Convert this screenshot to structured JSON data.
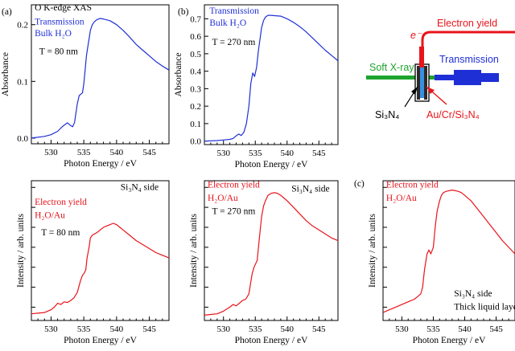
{
  "chart_data": [
    {
      "id": "a-top",
      "type": "line",
      "panel_label": "(a)",
      "xlabel": "Photon Energy / eV",
      "ylabel": "Absorbance",
      "xlim": [
        527,
        548
      ],
      "ylim": [
        -0.01,
        0.235
      ],
      "x_ticks": [
        530,
        535,
        540,
        545
      ],
      "y_ticks": [
        0.0,
        0.1,
        0.2
      ],
      "y_tick_labels": [
        "0.0",
        "0.1",
        "0.2"
      ],
      "series_color": "#1f2fd6",
      "annotations": [
        {
          "text": "O K-edge XAS",
          "color": "#000000",
          "x": 527.5,
          "y": 0.225
        },
        {
          "text": "Transmission",
          "color": "#1f2fd6",
          "x": 527.5,
          "y": 0.2
        },
        {
          "text": "Bulk H₂O",
          "color": "#1f2fd6",
          "x": 527.5,
          "y": 0.18
        },
        {
          "text": "T = 80 nm",
          "color": "#000000",
          "x": 528.2,
          "y": 0.148
        }
      ],
      "x": [
        527.0,
        529.0,
        530.0,
        531.0,
        531.8,
        532.5,
        533.0,
        533.3,
        533.6,
        534.0,
        534.3,
        534.6,
        534.8,
        535.0,
        535.2,
        535.4,
        535.6,
        535.8,
        536.0,
        536.3,
        536.6,
        537.0,
        537.5,
        538.0,
        539.0,
        540.0,
        541.0,
        542.0,
        543.0,
        544.0,
        545.0,
        546.0,
        547.0,
        548.0
      ],
      "y": [
        0.0,
        0.003,
        0.006,
        0.012,
        0.021,
        0.027,
        0.022,
        0.02,
        0.028,
        0.06,
        0.075,
        0.078,
        0.08,
        0.095,
        0.12,
        0.145,
        0.16,
        0.175,
        0.19,
        0.2,
        0.205,
        0.209,
        0.211,
        0.21,
        0.207,
        0.2,
        0.19,
        0.178,
        0.165,
        0.155,
        0.145,
        0.135,
        0.127,
        0.12
      ]
    },
    {
      "id": "b-top",
      "type": "line",
      "panel_label": "(b)",
      "xlabel": "Photon Energy / eV",
      "ylabel": "Absorbance",
      "xlim": [
        527,
        548
      ],
      "ylim": [
        -0.02,
        0.78
      ],
      "x_ticks": [
        530,
        535,
        540,
        545
      ],
      "y_ticks": [
        0.0,
        0.1,
        0.2,
        0.3,
        0.4,
        0.5,
        0.6,
        0.7
      ],
      "y_tick_labels": [
        "0.0",
        "0.1",
        "0.2",
        "0.3",
        "0.4",
        "0.5",
        "0.6",
        "0.7"
      ],
      "series_color": "#1f2fd6",
      "annotations": [
        {
          "text": "Transmission",
          "color": "#1f2fd6",
          "x": 527.8,
          "y": 0.73
        },
        {
          "text": "Bulk H₂O",
          "color": "#1f2fd6",
          "x": 527.8,
          "y": 0.66
        },
        {
          "text": "T = 270 nm",
          "color": "#000000",
          "x": 528.2,
          "y": 0.55
        }
      ],
      "x": [
        527.0,
        529.0,
        530.0,
        531.0,
        531.5,
        532.0,
        532.4,
        532.8,
        533.2,
        533.6,
        534.0,
        534.3,
        534.6,
        534.9,
        535.2,
        535.5,
        535.8,
        536.0,
        536.3,
        536.6,
        537.0,
        537.5,
        538.0,
        539.0,
        540.0,
        541.0,
        542.0,
        543.0,
        544.0,
        545.0,
        546.0,
        547.0,
        548.0
      ],
      "y": [
        0.0,
        0.003,
        0.006,
        0.01,
        0.015,
        0.03,
        0.04,
        0.032,
        0.05,
        0.1,
        0.2,
        0.33,
        0.39,
        0.37,
        0.42,
        0.52,
        0.6,
        0.65,
        0.69,
        0.71,
        0.72,
        0.72,
        0.718,
        0.715,
        0.7,
        0.68,
        0.655,
        0.625,
        0.59,
        0.555,
        0.52,
        0.49,
        0.46
      ]
    },
    {
      "id": "a-bottom",
      "type": "line",
      "xlabel": "Photon Energy / eV",
      "ylabel": "Intensity / arb. units",
      "xlim": [
        527,
        548
      ],
      "ylim": [
        0,
        1.05
      ],
      "x_ticks": [
        530,
        535,
        540,
        545
      ],
      "y_ticks": [
        0.1,
        0.25,
        0.4,
        0.55,
        0.7,
        0.85,
        1.0
      ],
      "series_color": "#e8141b",
      "annotations": [
        {
          "text": "Si₃N₄ side",
          "color": "#000000",
          "x": 540.6,
          "y": 0.98
        },
        {
          "text": "Electron yield",
          "color": "#e8141b",
          "x": 527.5,
          "y": 0.87
        },
        {
          "text": "H₂O/Au",
          "color": "#e8141b",
          "x": 527.5,
          "y": 0.77
        },
        {
          "text": "T = 80 nm",
          "color": "#000000",
          "x": 528.5,
          "y": 0.64
        }
      ],
      "x": [
        527.0,
        528.0,
        529.0,
        530.0,
        530.5,
        531.0,
        531.5,
        532.0,
        532.5,
        533.0,
        533.5,
        534.0,
        534.5,
        534.8,
        535.0,
        535.3,
        535.5,
        535.8,
        536.0,
        536.3,
        536.6,
        537.0,
        537.5,
        538.0,
        538.5,
        539.0,
        539.5,
        540.0,
        540.5,
        541.0,
        542.0,
        543.0,
        544.0,
        545.0,
        546.0,
        547.0,
        548.0
      ],
      "y": [
        0.05,
        0.055,
        0.06,
        0.08,
        0.1,
        0.13,
        0.12,
        0.14,
        0.135,
        0.15,
        0.17,
        0.21,
        0.3,
        0.34,
        0.35,
        0.38,
        0.47,
        0.55,
        0.62,
        0.64,
        0.65,
        0.66,
        0.68,
        0.7,
        0.71,
        0.72,
        0.73,
        0.72,
        0.7,
        0.68,
        0.64,
        0.6,
        0.57,
        0.54,
        0.51,
        0.49,
        0.47
      ]
    },
    {
      "id": "b-bottom",
      "type": "line",
      "xlabel": "Photon Energy / eV",
      "ylabel": "Intensity / arb. units",
      "xlim": [
        527,
        548
      ],
      "ylim": [
        0,
        1.05
      ],
      "x_ticks": [
        530,
        535,
        540,
        545
      ],
      "y_ticks": [
        0.1,
        0.25,
        0.4,
        0.55,
        0.7,
        0.85,
        1.0
      ],
      "series_color": "#e8141b",
      "annotations": [
        {
          "text": "Electron yield",
          "color": "#e8141b",
          "x": 527.5,
          "y": 1.0
        },
        {
          "text": "Si₃N₄ side",
          "color": "#000000",
          "x": 540.7,
          "y": 0.97
        },
        {
          "text": "H₂O/Au",
          "color": "#e8141b",
          "x": 527.5,
          "y": 0.9
        },
        {
          "text": "T = 270 nm",
          "color": "#000000",
          "x": 528.2,
          "y": 0.8
        }
      ],
      "x": [
        527.0,
        528.0,
        529.0,
        530.0,
        531.0,
        531.5,
        532.0,
        532.5,
        533.0,
        533.5,
        534.0,
        534.5,
        534.8,
        535.0,
        535.3,
        535.6,
        536.0,
        536.3,
        536.6,
        537.0,
        537.5,
        538.0,
        538.5,
        539.0,
        539.5,
        540.0,
        541.0,
        542.0,
        543.0,
        544.0,
        545.0,
        546.0,
        547.0,
        548.0
      ],
      "y": [
        0.04,
        0.045,
        0.05,
        0.07,
        0.1,
        0.12,
        0.11,
        0.13,
        0.15,
        0.16,
        0.2,
        0.35,
        0.4,
        0.42,
        0.45,
        0.6,
        0.78,
        0.86,
        0.9,
        0.94,
        0.955,
        0.96,
        0.955,
        0.94,
        0.92,
        0.9,
        0.85,
        0.8,
        0.75,
        0.71,
        0.68,
        0.65,
        0.62,
        0.6
      ]
    },
    {
      "id": "c-bottom",
      "type": "line",
      "panel_label": "(c)",
      "xlabel": "Photon Energy / eV",
      "ylabel": "Intensity / arb. units",
      "xlim": [
        527,
        548
      ],
      "ylim": [
        0,
        1.05
      ],
      "x_ticks": [
        530,
        535,
        540,
        545
      ],
      "y_ticks": [
        0.1,
        0.25,
        0.4,
        0.55,
        0.7,
        0.85,
        1.0
      ],
      "series_color": "#e8141b",
      "annotations": [
        {
          "text": "Electron yield",
          "color": "#e8141b",
          "x": 527.5,
          "y": 1.0
        },
        {
          "text": "H₂O/Au",
          "color": "#e8141b",
          "x": 527.5,
          "y": 0.9
        },
        {
          "text": "Si₃N₄ side",
          "color": "#000000",
          "x": 538.3,
          "y": 0.18
        },
        {
          "text": "Thick liquid layer",
          "color": "#000000",
          "x": 538.3,
          "y": 0.08
        }
      ],
      "x": [
        527.0,
        528.0,
        529.0,
        530.0,
        531.0,
        532.0,
        532.5,
        533.0,
        533.3,
        533.6,
        534.0,
        534.3,
        534.6,
        535.0,
        535.3,
        535.6,
        536.0,
        536.3,
        536.6,
        537.0,
        537.5,
        538.0,
        538.5,
        539.0,
        539.5,
        540.0,
        541.0,
        542.0,
        543.0,
        544.0,
        545.0,
        546.0,
        547.0,
        548.0
      ],
      "y": [
        0.06,
        0.08,
        0.1,
        0.12,
        0.14,
        0.16,
        0.18,
        0.2,
        0.25,
        0.38,
        0.5,
        0.53,
        0.5,
        0.55,
        0.7,
        0.82,
        0.9,
        0.94,
        0.96,
        0.97,
        0.975,
        0.98,
        0.975,
        0.97,
        0.96,
        0.94,
        0.9,
        0.84,
        0.78,
        0.72,
        0.66,
        0.6,
        0.55,
        0.5
      ]
    }
  ],
  "diagram": {
    "electron_yield": "Electron yield",
    "electron_symbol": "e⁻",
    "soft_xray": "Soft X-ray",
    "transmission": "Transmission",
    "si3n4": "Si₃N₄",
    "au_cr_si3n4": "Au/Cr/Si₃N₄",
    "colors": {
      "red": "#e8141b",
      "blue": "#1f2fd6",
      "green": "#1ea42e"
    }
  }
}
